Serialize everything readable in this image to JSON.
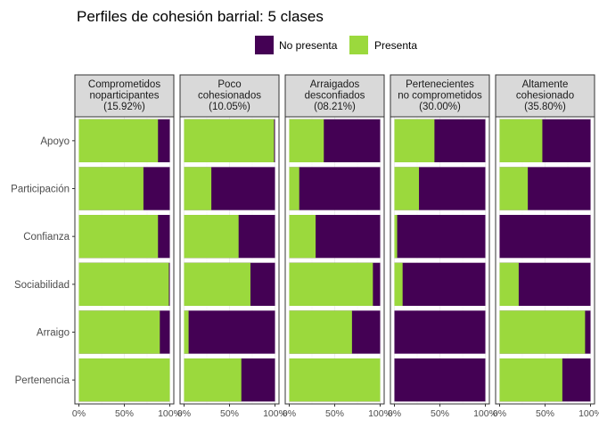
{
  "chart_data": {
    "type": "bar",
    "orientation": "horizontal",
    "stacked": true,
    "title": "Perfiles de cohesión barrial: 5 clases",
    "legend": {
      "position": "top",
      "entries": [
        {
          "name": "No presenta",
          "color": "#440154"
        },
        {
          "name": "Presenta",
          "color": "#9BD93D"
        }
      ]
    },
    "categories": [
      "Apoyo",
      "Participación",
      "Confianza",
      "Sociabilidad",
      "Arraigo",
      "Pertenencia"
    ],
    "x_ticks": [
      "0%",
      "50%",
      "100%"
    ],
    "xlim": [
      0,
      100
    ],
    "panels": [
      {
        "strip": [
          "Comprometidos",
          "noparticipantes",
          "(15.92%)"
        ],
        "presenta": [
          87,
          71,
          87,
          99,
          89,
          100
        ]
      },
      {
        "strip": [
          "Poco",
          "cohesionados",
          "(10.05%)"
        ],
        "presenta": [
          99,
          30,
          60,
          73,
          5,
          63
        ]
      },
      {
        "strip": [
          "Arraigados",
          "desconfiados",
          "(08.21%)"
        ],
        "presenta": [
          38,
          11,
          29,
          92,
          69,
          100
        ]
      },
      {
        "strip": [
          "Pertenecientes",
          "no comprometidos",
          "(30.00%)"
        ],
        "presenta": [
          44,
          27,
          3,
          9,
          0,
          0
        ]
      },
      {
        "strip": [
          "Altamente",
          "cohesionado",
          "(35.80%)"
        ],
        "presenta": [
          47,
          31,
          0,
          21,
          94,
          69
        ]
      }
    ]
  }
}
